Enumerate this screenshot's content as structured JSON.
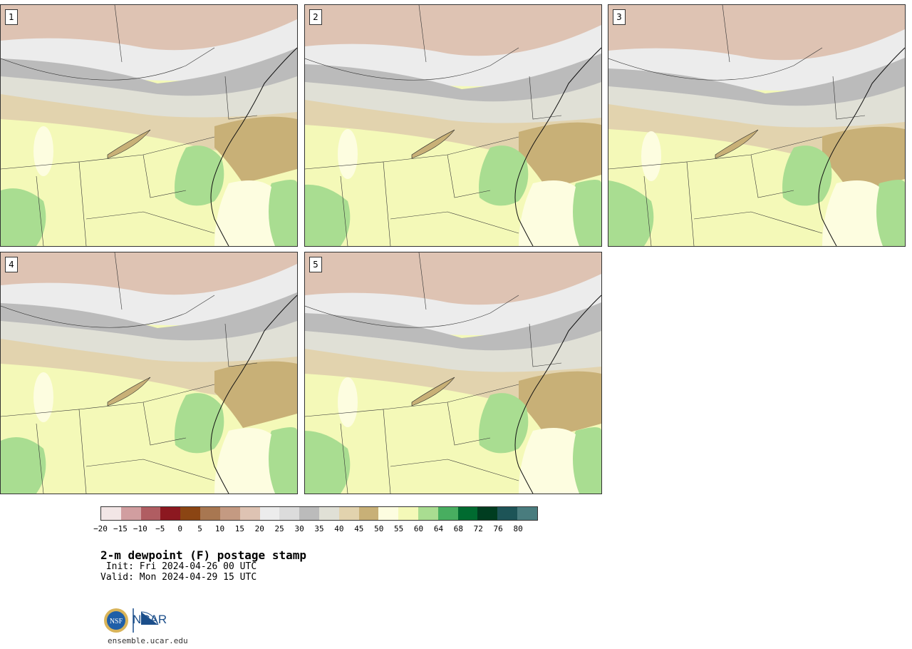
{
  "panels": [
    {
      "label": "1"
    },
    {
      "label": "2"
    },
    {
      "label": "3"
    },
    {
      "label": "4"
    },
    {
      "label": "5"
    }
  ],
  "legend": {
    "colors": [
      "#f2e6e6",
      "#d19ea0",
      "#b05d62",
      "#8c1820",
      "#8b4513",
      "#a87751",
      "#c49a82",
      "#dec3b3",
      "#ececec",
      "#dcdcdc",
      "#bbbbbb",
      "#e0e0d6",
      "#e2d3ae",
      "#c8b077",
      "#fdfde0",
      "#f4f9b8",
      "#a9dd91",
      "#48ae60",
      "#006b30",
      "#003d20",
      "#1d5457",
      "#497c7e"
    ],
    "ticks": [
      "−20",
      "−15",
      "−10",
      "−5",
      "0",
      "5",
      "10",
      "15",
      "20",
      "25",
      "30",
      "35",
      "40",
      "45",
      "50",
      "55",
      "60",
      "64",
      "68",
      "72",
      "76",
      "80"
    ]
  },
  "title": "2-m dewpoint (F) postage stamp",
  "init": " Init: Fri 2024-04-26 00 UTC",
  "valid": "Valid: Mon 2024-04-29 15 UTC",
  "logo": {
    "org": "NCAR",
    "seal": "NSF"
  },
  "url": "ensemble.ucar.edu"
}
